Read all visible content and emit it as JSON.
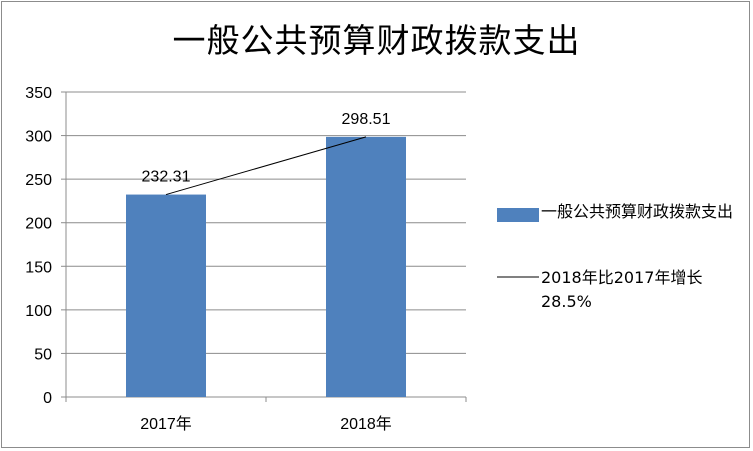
{
  "chart_data": {
    "type": "bar",
    "title": "一般公共预算财政拨款支出",
    "categories": [
      "2017年",
      "2018年"
    ],
    "series": [
      {
        "name": "一般公共预算财政拨款支出",
        "values": [
          232.31,
          298.51
        ],
        "data_labels": [
          "232.31",
          "298.51"
        ],
        "color": "#4f81bd"
      },
      {
        "name": "2018年比2017年增长28.5%",
        "type": "line",
        "values": [
          232.31,
          298.51
        ],
        "color": "#000000"
      }
    ],
    "ylim": [
      0,
      350
    ],
    "yticks": [
      0,
      50,
      100,
      150,
      200,
      250,
      300,
      350
    ],
    "ytick_labels": [
      "0",
      "50",
      "100",
      "150",
      "200",
      "250",
      "300",
      "350"
    ],
    "grid": true,
    "legend_position": "right",
    "xlabel": "",
    "ylabel": ""
  }
}
